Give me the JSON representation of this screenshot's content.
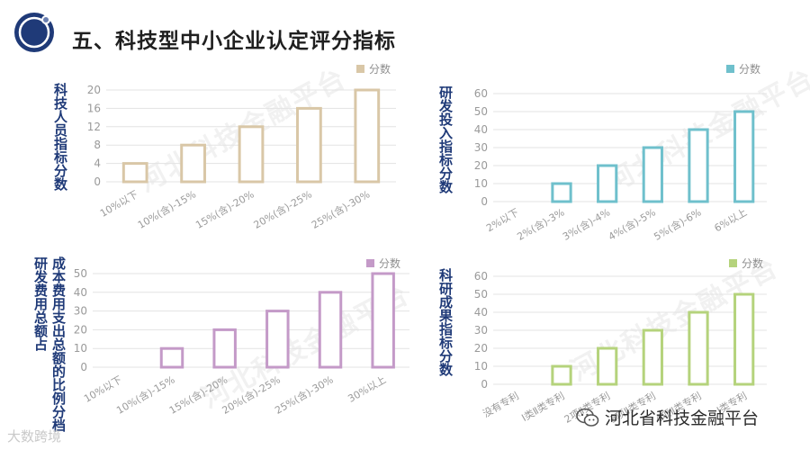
{
  "page": {
    "title": "五、科技型中小企业认定评分指标",
    "watermark_text": "河北科技金融平台",
    "platform_name": "河北省科技金融平台",
    "source_mark": "大数跨境"
  },
  "chart_data": [
    {
      "type": "bar",
      "ylabel": "科技人员指标分数",
      "legend": "分数",
      "color": "#d9c7a7",
      "categories": [
        "10%以下",
        "10%(含)-15%",
        "15%(含)-20%",
        "20%(含)-25%",
        "25%(含)-30%"
      ],
      "values": [
        4,
        8,
        12,
        16,
        20
      ],
      "ylim": [
        0,
        20
      ],
      "yticks": [
        0,
        4,
        8,
        12,
        16,
        20
      ]
    },
    {
      "type": "bar",
      "ylabel": "研发投入指标分数",
      "legend": "分数",
      "color": "#6fc0cc",
      "categories": [
        "2%以下",
        "2%(含)-3%",
        "3%(含)-4%",
        "4%(含)-5%",
        "5%(含)-6%",
        "6%以上"
      ],
      "values": [
        0,
        10,
        20,
        30,
        40,
        50
      ],
      "ylim": [
        0,
        60
      ],
      "yticks": [
        0,
        10,
        20,
        30,
        40,
        50,
        60
      ]
    },
    {
      "type": "bar",
      "ylabel": "研发费用总额占成本费用支出总额的比例分档",
      "legend": "分数",
      "color": "#c49ac8",
      "categories": [
        "10%以下",
        "10%(含)-15%",
        "15%(含)-20%",
        "20%(含)-25%",
        "25%(含)-30%",
        "30%以上"
      ],
      "values": [
        0,
        10,
        20,
        30,
        40,
        50
      ],
      "ylim": [
        0,
        50
      ],
      "yticks": [
        0,
        10,
        20,
        30,
        40,
        50
      ]
    },
    {
      "type": "bar",
      "ylabel": "科研成果指标分数",
      "legend": "分数",
      "color": "#b5d37c",
      "categories": [
        "没有专利",
        "Ⅰ类Ⅱ类专利",
        "2项Ⅱ类专利",
        "3项Ⅱ类专利",
        "4项Ⅱ类专利",
        "Ⅰ类专利"
      ],
      "values": [
        0,
        10,
        20,
        30,
        40,
        50
      ],
      "ylim": [
        0,
        60
      ],
      "yticks": [
        0,
        10,
        20,
        30,
        40,
        50,
        60
      ]
    }
  ]
}
